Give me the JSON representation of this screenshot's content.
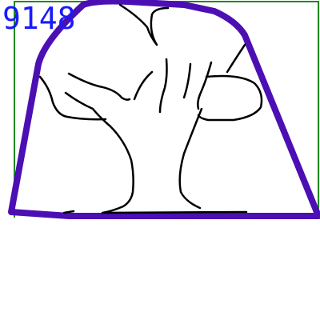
{
  "sketch": {
    "id_label": "9148",
    "id_color": "#1a1aff",
    "frame_color": "#1f8a1f",
    "outline_color": "#4b0fb4",
    "stroke_color": "#000000",
    "subject": "tree-icon"
  }
}
